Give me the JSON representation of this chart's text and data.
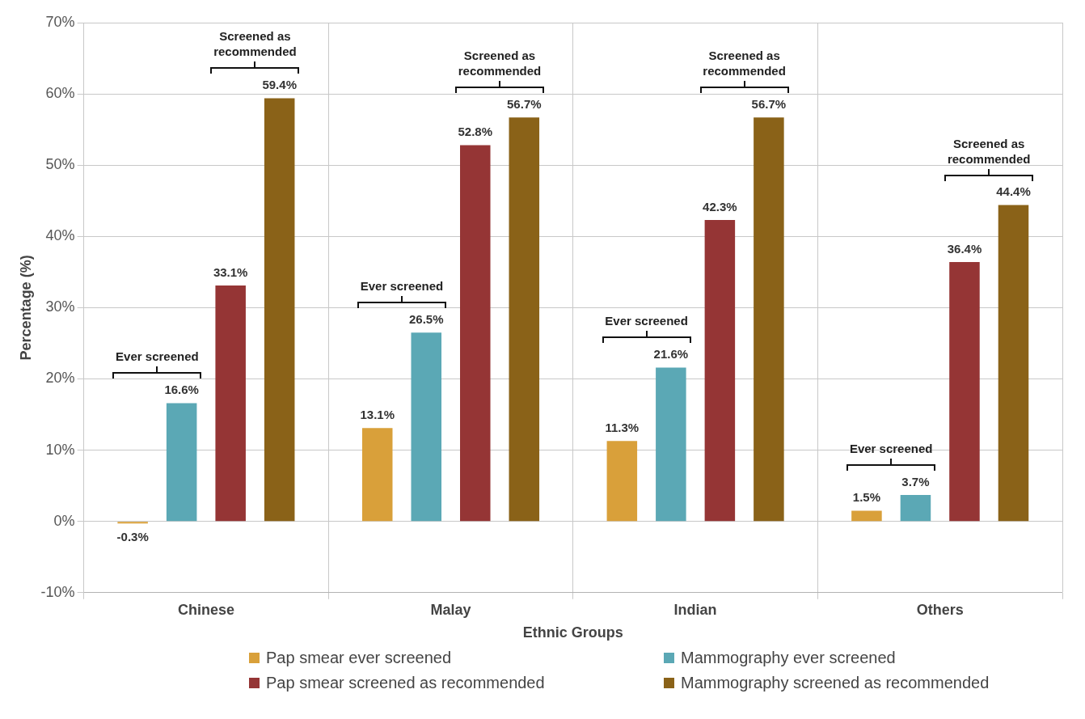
{
  "chart_data": {
    "type": "bar",
    "xlabel": "Ethnic Groups",
    "ylabel": "Percentage (%)",
    "categories": [
      "Chinese",
      "Malay",
      "Indian",
      "Others"
    ],
    "series": [
      {
        "name": "Pap smear ever screened",
        "color": "#d9a03a",
        "values": [
          -0.3,
          13.1,
          11.3,
          1.5
        ],
        "value_labels": [
          "-0.3%",
          "13.1%",
          "11.3%",
          "1.5%"
        ]
      },
      {
        "name": "Mammography ever screened",
        "color": "#5ba8b5",
        "values": [
          16.6,
          26.5,
          21.6,
          3.7
        ],
        "value_labels": [
          "16.6%",
          "26.5%",
          "21.6%",
          "3.7%"
        ]
      },
      {
        "name": "Pap smear screened as recommended",
        "color": "#953535",
        "values": [
          33.1,
          52.8,
          42.3,
          36.4
        ],
        "value_labels": [
          "33.1%",
          "52.8%",
          "42.3%",
          "36.4%"
        ]
      },
      {
        "name": "Mammography screened as recommended",
        "color": "#8a6218",
        "values": [
          59.4,
          56.7,
          56.7,
          44.4
        ],
        "value_labels": [
          "59.4%",
          "56.7%",
          "56.7%",
          "44.4%"
        ]
      }
    ],
    "ylim": [
      -10,
      70
    ],
    "yticks": [
      {
        "value": -10,
        "label": "-10%"
      },
      {
        "value": 0,
        "label": "0%"
      },
      {
        "value": 10,
        "label": "10%"
      },
      {
        "value": 20,
        "label": "20%"
      },
      {
        "value": 30,
        "label": "30%"
      },
      {
        "value": 40,
        "label": "40%"
      },
      {
        "value": 50,
        "label": "50%"
      },
      {
        "value": 60,
        "label": "60%"
      },
      {
        "value": 70,
        "label": "70%"
      }
    ],
    "grid": true,
    "legend": "bottom",
    "annotations": [
      "Ever screened",
      "Screened as recommended",
      "Ever screened",
      "Screened as recommended",
      "Ever screened",
      "Screened as recommended",
      "Ever screened",
      "Screened as recommended"
    ]
  }
}
